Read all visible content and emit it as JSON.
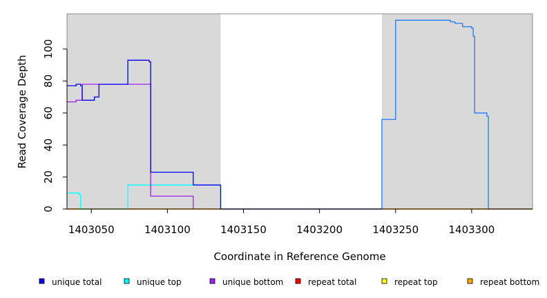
{
  "chart_data": {
    "type": "line",
    "xlabel": "Coordinate in Reference Genome",
    "ylabel": "Read Coverage Depth",
    "xlim": [
      1403034,
      1403340
    ],
    "ylim": [
      0,
      122
    ],
    "x_ticks": [
      1403050,
      1403100,
      1403150,
      1403200,
      1403250,
      1403300
    ],
    "y_ticks": [
      0,
      20,
      40,
      60,
      80,
      100
    ],
    "grid": false,
    "legend_position": "bottom",
    "background_colors": {
      "shaded": "#d9d9d9",
      "unshaded": "#ffffff"
    },
    "shaded_regions": [
      {
        "x_start": 1403034,
        "x_end": 1403135
      },
      {
        "x_start": 1403241,
        "x_end": 1403340
      }
    ],
    "series": [
      {
        "name": "unique total",
        "color": "#0000ee",
        "points": [
          [
            1403034,
            77
          ],
          [
            1403040,
            77
          ],
          [
            1403040,
            78
          ],
          [
            1403043,
            78
          ],
          [
            1403043,
            77
          ],
          [
            1403044,
            77
          ],
          [
            1403044,
            68
          ],
          [
            1403052,
            68
          ],
          [
            1403052,
            70
          ],
          [
            1403055,
            70
          ],
          [
            1403055,
            78
          ],
          [
            1403074,
            78
          ],
          [
            1403074,
            93
          ],
          [
            1403088,
            93
          ],
          [
            1403088,
            92
          ],
          [
            1403089,
            92
          ],
          [
            1403089,
            23
          ],
          [
            1403117,
            23
          ],
          [
            1403117,
            15
          ],
          [
            1403135,
            15
          ],
          [
            1403135,
            0
          ],
          [
            1403241,
            0
          ]
        ]
      },
      {
        "name": "unique top",
        "color": "#00ffff",
        "points": [
          [
            1403034,
            10
          ],
          [
            1403042,
            10
          ],
          [
            1403042,
            9
          ],
          [
            1403043,
            9
          ],
          [
            1403043,
            0
          ],
          [
            1403074,
            0
          ],
          [
            1403074,
            15
          ],
          [
            1403135,
            15
          ],
          [
            1403135,
            0
          ]
        ]
      },
      {
        "name": "unique bottom",
        "color": "#a020f0",
        "points": [
          [
            1403034,
            67
          ],
          [
            1403040,
            67
          ],
          [
            1403040,
            68
          ],
          [
            1403044,
            68
          ],
          [
            1403044,
            78
          ],
          [
            1403089,
            78
          ],
          [
            1403089,
            8
          ],
          [
            1403117,
            8
          ],
          [
            1403117,
            0
          ]
        ]
      },
      {
        "name": "repeat total",
        "color": "#ff0000",
        "points": [
          [
            1403034,
            0
          ],
          [
            1403340,
            0
          ]
        ]
      },
      {
        "name": "repeat top",
        "color": "#ffff00",
        "points": [
          [
            1403034,
            0
          ],
          [
            1403340,
            0
          ]
        ]
      },
      {
        "name": "repeat bottom",
        "color": "#ffa500",
        "points": [
          [
            1403034,
            0
          ],
          [
            1403340,
            0
          ]
        ]
      },
      {
        "color": "#1e78ff",
        "points": [
          [
            1403135,
            0
          ],
          [
            1403241,
            0
          ],
          [
            1403241,
            56
          ],
          [
            1403250,
            56
          ],
          [
            1403250,
            118
          ],
          [
            1403286,
            118
          ],
          [
            1403286,
            117
          ],
          [
            1403289,
            117
          ],
          [
            1403289,
            116
          ],
          [
            1403294,
            116
          ],
          [
            1403294,
            114
          ],
          [
            1403300,
            114
          ],
          [
            1403300,
            113
          ],
          [
            1403301,
            113
          ],
          [
            1403301,
            108
          ],
          [
            1403302,
            108
          ],
          [
            1403302,
            60
          ],
          [
            1403310,
            60
          ],
          [
            1403310,
            58
          ],
          [
            1403311,
            58
          ],
          [
            1403311,
            0
          ],
          [
            1403340,
            0
          ]
        ]
      }
    ]
  }
}
